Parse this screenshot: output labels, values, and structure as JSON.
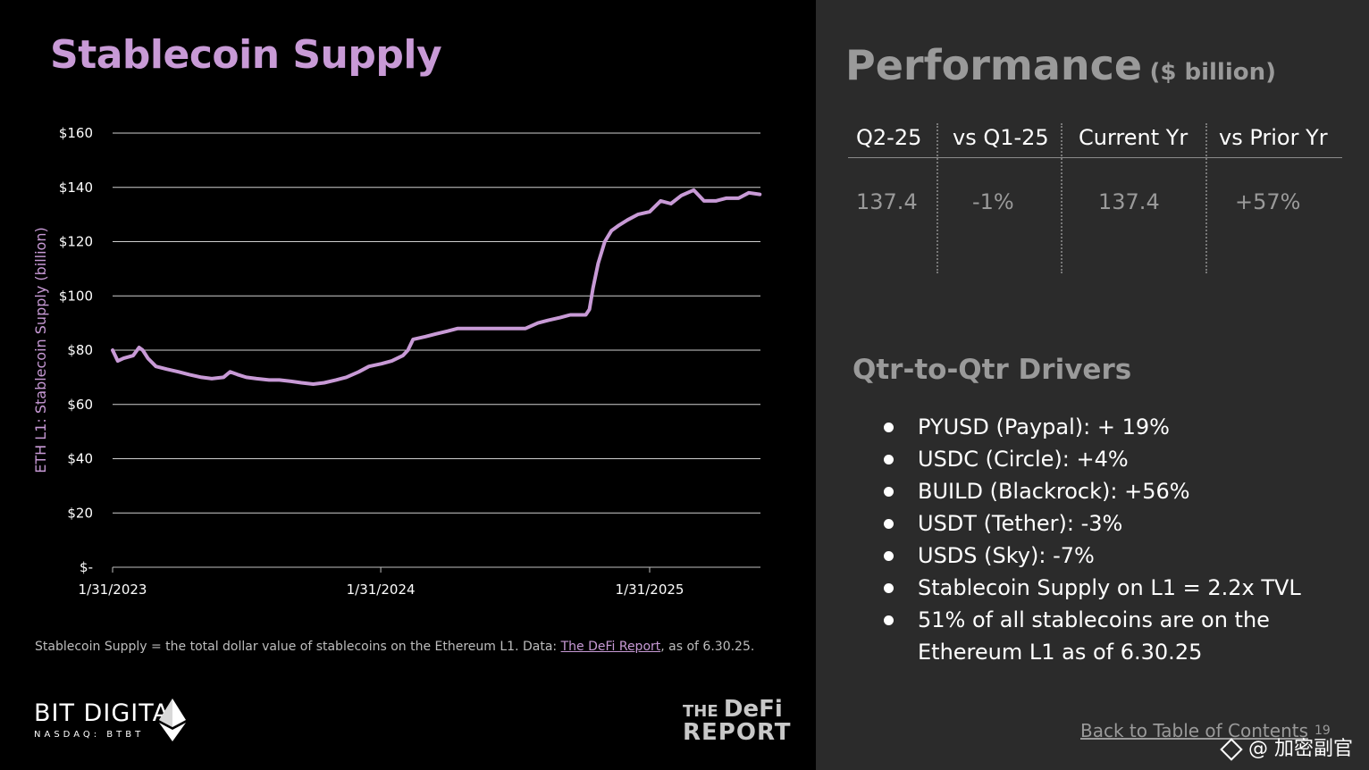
{
  "left_panel": {
    "title": "Stablecoin Supply",
    "footnote_prefix": "Stablecoin Supply = the total dollar value of stablecoins on the Ethereum L1. Data: ",
    "footnote_link": "The DeFi Report",
    "footnote_suffix": ", as of 6.30.25.",
    "brand_name": "BIT DIGITAL",
    "brand_sub": "NASDAQ: BTBT",
    "partner_logo_top_small": "THE",
    "partner_logo_top_big": "DeFi",
    "partner_logo_bottom": "REPORT"
  },
  "chart_data": {
    "type": "line",
    "title": "",
    "ylabel": "ETH L1: Stablecoin Supply (billion)",
    "xlabel": "",
    "line_color": "#c89ad6",
    "grid": true,
    "ylim": [
      0,
      160
    ],
    "y_ticks": [
      0,
      20,
      40,
      60,
      80,
      100,
      120,
      140,
      160
    ],
    "y_tick_labels": [
      "$-",
      "$20",
      "$40",
      "$60",
      "$80",
      "$100",
      "$120",
      "$140",
      "$160"
    ],
    "x_range": [
      "2023-01-31",
      "2025-06-30"
    ],
    "x_ticks": [
      "2023-01-31",
      "2024-01-31",
      "2025-01-31"
    ],
    "x_tick_labels": [
      "1/31/2023",
      "1/31/2024",
      "1/31/2025"
    ],
    "series": [
      {
        "name": "",
        "x": [
          "2023-01-31",
          "2023-02-07",
          "2023-02-15",
          "2023-02-28",
          "2023-03-08",
          "2023-03-13",
          "2023-03-20",
          "2023-03-31",
          "2023-04-15",
          "2023-05-01",
          "2023-05-15",
          "2023-06-01",
          "2023-06-15",
          "2023-07-01",
          "2023-07-10",
          "2023-07-20",
          "2023-08-01",
          "2023-08-15",
          "2023-09-01",
          "2023-09-15",
          "2023-10-01",
          "2023-10-15",
          "2023-10-31",
          "2023-11-15",
          "2023-12-01",
          "2023-12-15",
          "2024-01-01",
          "2024-01-15",
          "2024-02-01",
          "2024-02-15",
          "2024-03-01",
          "2024-03-08",
          "2024-03-15",
          "2024-04-01",
          "2024-04-15",
          "2024-05-01",
          "2024-05-15",
          "2024-06-01",
          "2024-06-15",
          "2024-07-01",
          "2024-07-15",
          "2024-08-01",
          "2024-08-15",
          "2024-09-01",
          "2024-09-15",
          "2024-10-01",
          "2024-10-15",
          "2024-11-01",
          "2024-11-05",
          "2024-11-10",
          "2024-11-15",
          "2024-11-22",
          "2024-12-01",
          "2024-12-10",
          "2024-12-20",
          "2025-01-01",
          "2025-01-15",
          "2025-01-31",
          "2025-02-15",
          "2025-03-01",
          "2025-03-15",
          "2025-04-01",
          "2025-04-15",
          "2025-05-01",
          "2025-05-15",
          "2025-06-01",
          "2025-06-15",
          "2025-06-30"
        ],
        "y": [
          80,
          76,
          77,
          78,
          81,
          80,
          77,
          74,
          73,
          72,
          71,
          70,
          69.5,
          70,
          72,
          71,
          70,
          69.5,
          69,
          69,
          68.5,
          68,
          67.5,
          68,
          69,
          70,
          72,
          74,
          75,
          76,
          78,
          80,
          84,
          85,
          86,
          87,
          88,
          88,
          88,
          88,
          88,
          88,
          88,
          90,
          91,
          92,
          93,
          93,
          93,
          95,
          103,
          112,
          120,
          124,
          126,
          128,
          130,
          131,
          135,
          134,
          137,
          139,
          135,
          135,
          136,
          136,
          138,
          137.4
        ]
      }
    ]
  },
  "right_panel": {
    "title": "Performance",
    "title_unit": "($ billion)",
    "table": {
      "headers": [
        "Q2-25",
        "vs Q1-25",
        "Current Yr",
        "vs Prior Yr"
      ],
      "values": [
        "137.4",
        "-1%",
        "137.4",
        "+57%"
      ]
    },
    "drivers_title": "Qtr-to-Qtr Drivers",
    "drivers": [
      "PYUSD (Paypal): + 19%",
      "USDC (Circle): +4%",
      "BUILD (Blackrock): +56%",
      "USDT (Tether): -3%",
      "USDS (Sky): -7%",
      "Stablecoin Supply on L1 = 2.2x TVL",
      "51% of all stablecoins are on the Ethereum L1 as of 6.30.25"
    ],
    "back_link": "Back to Table of Contents",
    "page_number": "19",
    "watermark": "@ 加密副官"
  }
}
